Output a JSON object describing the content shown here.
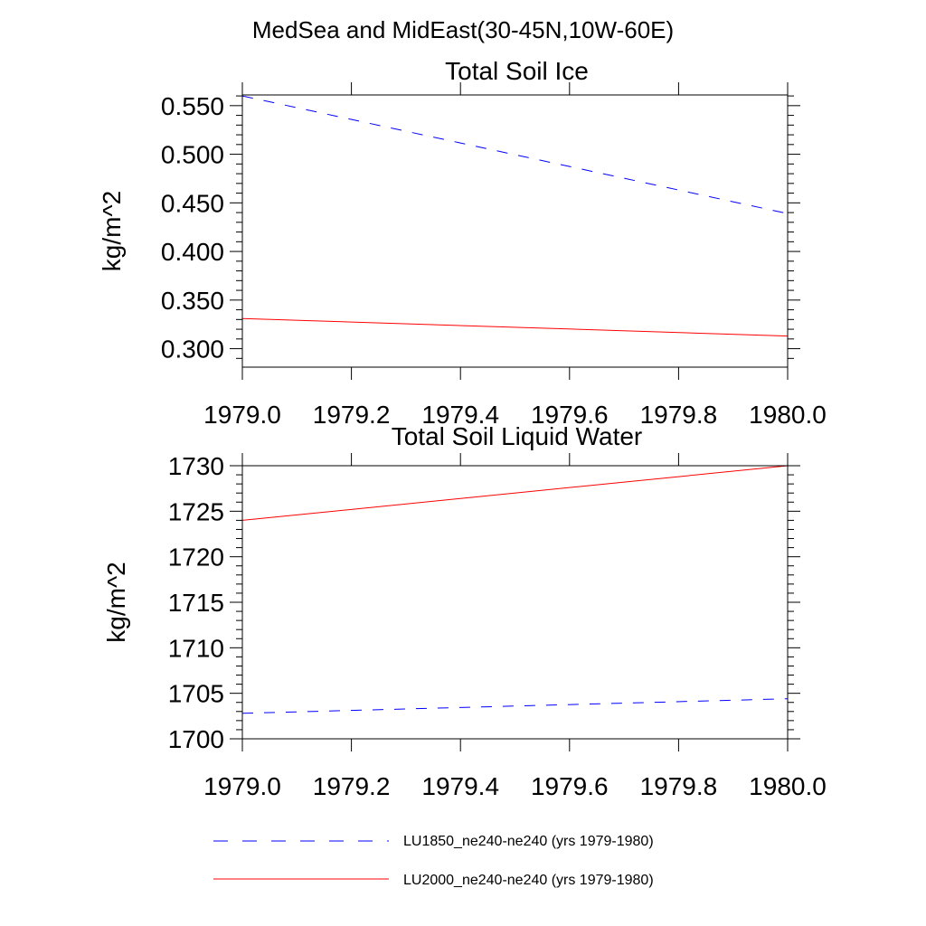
{
  "figure": {
    "title": "MedSea and MidEast(30-45N,10W-60E)"
  },
  "legend": {
    "placement": "bottom",
    "entries": [
      {
        "label": "LU1850_ne240-ne240 (yrs 1979-1980)",
        "color": "#0000ff",
        "style": "dashed"
      },
      {
        "label": "LU2000_ne240-ne240 (yrs 1979-1980)",
        "color": "#ff0000",
        "style": "solid"
      }
    ]
  },
  "chart_data": [
    {
      "type": "line",
      "title": "Total Soil Ice",
      "xlabel": "",
      "ylabel": "kg/m^2",
      "xlim": [
        1979.0,
        1980.0
      ],
      "ylim": [
        0.281,
        0.561
      ],
      "xticks": [
        1979.0,
        1979.2,
        1979.4,
        1979.6,
        1979.8,
        1980.0
      ],
      "xtick_labels": [
        "1979.0",
        "1979.2",
        "1979.4",
        "1979.6",
        "1979.8",
        "1980.0"
      ],
      "yticks": [
        0.3,
        0.35,
        0.4,
        0.45,
        0.5,
        0.55
      ],
      "ytick_labels": [
        "0.300",
        "0.350",
        "0.400",
        "0.450",
        "0.500",
        "0.550"
      ],
      "grid": false,
      "series": [
        {
          "name": "LU1850_ne240-ne240 (yrs 1979-1980)",
          "color": "#0000ff",
          "style": "dashed",
          "x": [
            1979.0,
            1980.0
          ],
          "y": [
            0.56,
            0.439
          ]
        },
        {
          "name": "LU2000_ne240-ne240 (yrs 1979-1980)",
          "color": "#ff0000",
          "style": "solid",
          "x": [
            1979.0,
            1980.0
          ],
          "y": [
            0.331,
            0.313
          ]
        }
      ]
    },
    {
      "type": "line",
      "title": "Total Soil Liquid Water",
      "xlabel": "",
      "ylabel": "kg/m^2",
      "xlim": [
        1979.0,
        1980.0
      ],
      "ylim": [
        1700,
        1730
      ],
      "xticks": [
        1979.0,
        1979.2,
        1979.4,
        1979.6,
        1979.8,
        1980.0
      ],
      "xtick_labels": [
        "1979.0",
        "1979.2",
        "1979.4",
        "1979.6",
        "1979.8",
        "1980.0"
      ],
      "yticks": [
        1700,
        1705,
        1710,
        1715,
        1720,
        1725,
        1730
      ],
      "ytick_labels": [
        "1700",
        "1705",
        "1710",
        "1715",
        "1720",
        "1725",
        "1730"
      ],
      "grid": false,
      "series": [
        {
          "name": "LU1850_ne240-ne240 (yrs 1979-1980)",
          "color": "#0000ff",
          "style": "dashed",
          "x": [
            1979.0,
            1980.0
          ],
          "y": [
            1702.8,
            1704.4
          ]
        },
        {
          "name": "LU2000_ne240-ne240 (yrs 1979-1980)",
          "color": "#ff0000",
          "style": "solid",
          "x": [
            1979.0,
            1980.0
          ],
          "y": [
            1724.0,
            1730.0
          ]
        }
      ]
    }
  ]
}
